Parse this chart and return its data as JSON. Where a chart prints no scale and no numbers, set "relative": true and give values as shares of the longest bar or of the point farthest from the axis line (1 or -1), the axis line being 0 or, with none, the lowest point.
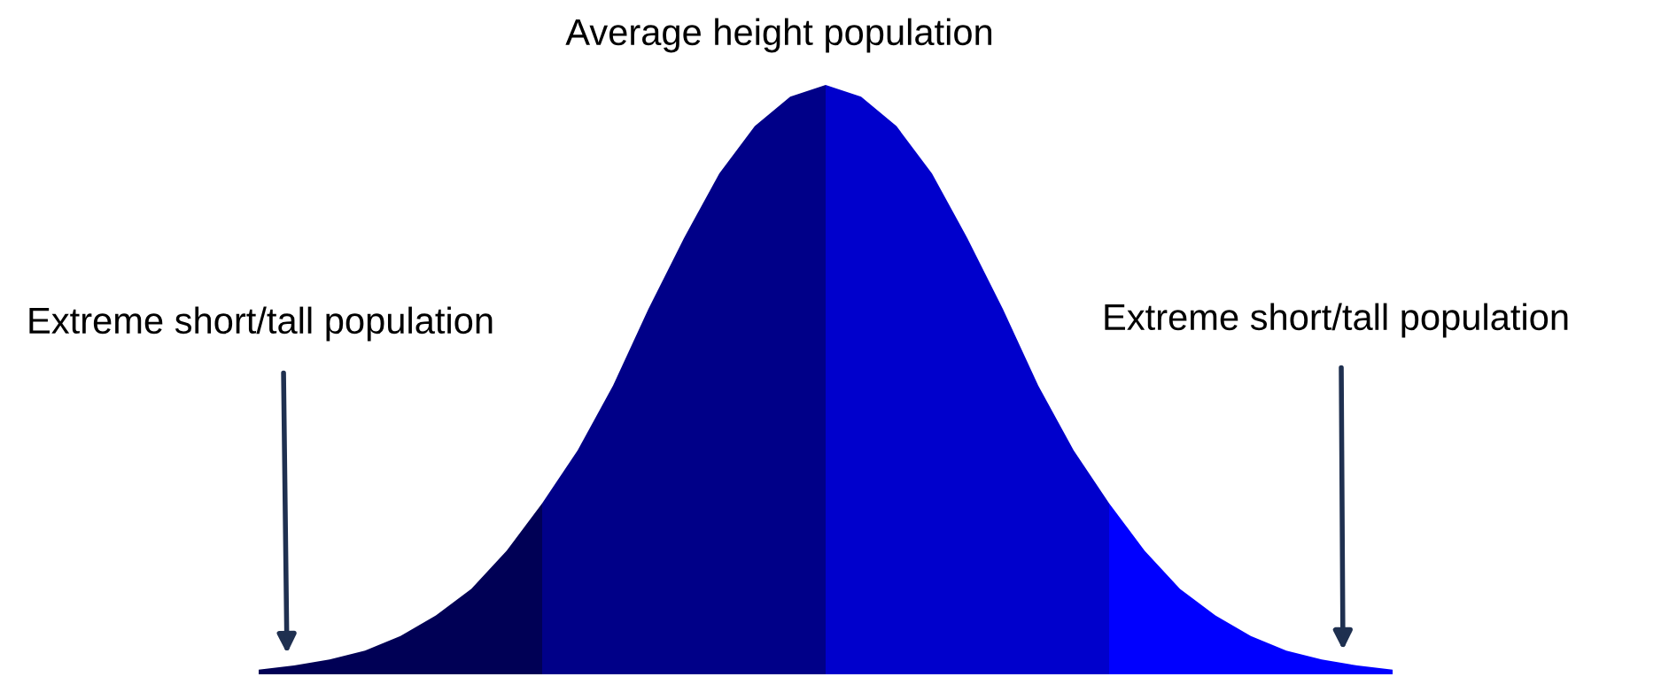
{
  "chart_data": {
    "type": "area",
    "relative": true,
    "title": "Average height population",
    "categories": [
      null,
      null,
      null,
      null,
      null,
      null,
      null,
      null,
      null,
      null,
      null,
      null,
      null,
      null,
      null,
      null,
      null,
      null,
      null,
      null,
      null,
      null,
      null,
      null,
      null,
      null,
      null,
      null,
      null,
      null,
      null,
      null,
      null
    ],
    "series": [
      {
        "color": "#000055",
        "values": [
          0.008,
          0.015,
          0.025,
          0.04,
          0.065,
          0.1,
          0.145,
          0.21,
          0.29,
          null,
          null,
          null,
          null,
          null,
          null,
          null,
          null,
          null,
          null,
          null,
          null,
          null,
          null,
          null,
          null,
          null,
          null,
          null,
          null,
          null,
          null,
          null,
          null
        ]
      },
      {
        "color": "#000088",
        "values": [
          null,
          null,
          null,
          null,
          null,
          null,
          null,
          null,
          0.29,
          0.38,
          0.49,
          0.62,
          0.74,
          0.85,
          0.93,
          0.98,
          1,
          null,
          null,
          null,
          null,
          null,
          null,
          null,
          null,
          null,
          null,
          null,
          null,
          null,
          null,
          null,
          null
        ]
      },
      {
        "color": "#0000cc",
        "values": [
          null,
          null,
          null,
          null,
          null,
          null,
          null,
          null,
          null,
          null,
          null,
          null,
          null,
          null,
          null,
          null,
          1,
          0.98,
          0.93,
          0.85,
          0.74,
          0.62,
          0.49,
          0.38,
          0.29,
          null,
          null,
          null,
          null,
          null,
          null,
          null,
          null
        ]
      },
      {
        "color": "#0000ff",
        "values": [
          null,
          null,
          null,
          null,
          null,
          null,
          null,
          null,
          null,
          null,
          null,
          null,
          null,
          null,
          null,
          null,
          null,
          null,
          null,
          null,
          null,
          null,
          null,
          null,
          0.29,
          0.21,
          0.145,
          0.1,
          0.065,
          0.04,
          0.025,
          0.015,
          0.008
        ]
      }
    ],
    "annotations": [
      "Extreme short/tall population",
      "Extreme short/tall population"
    ],
    "legend": false
  }
}
